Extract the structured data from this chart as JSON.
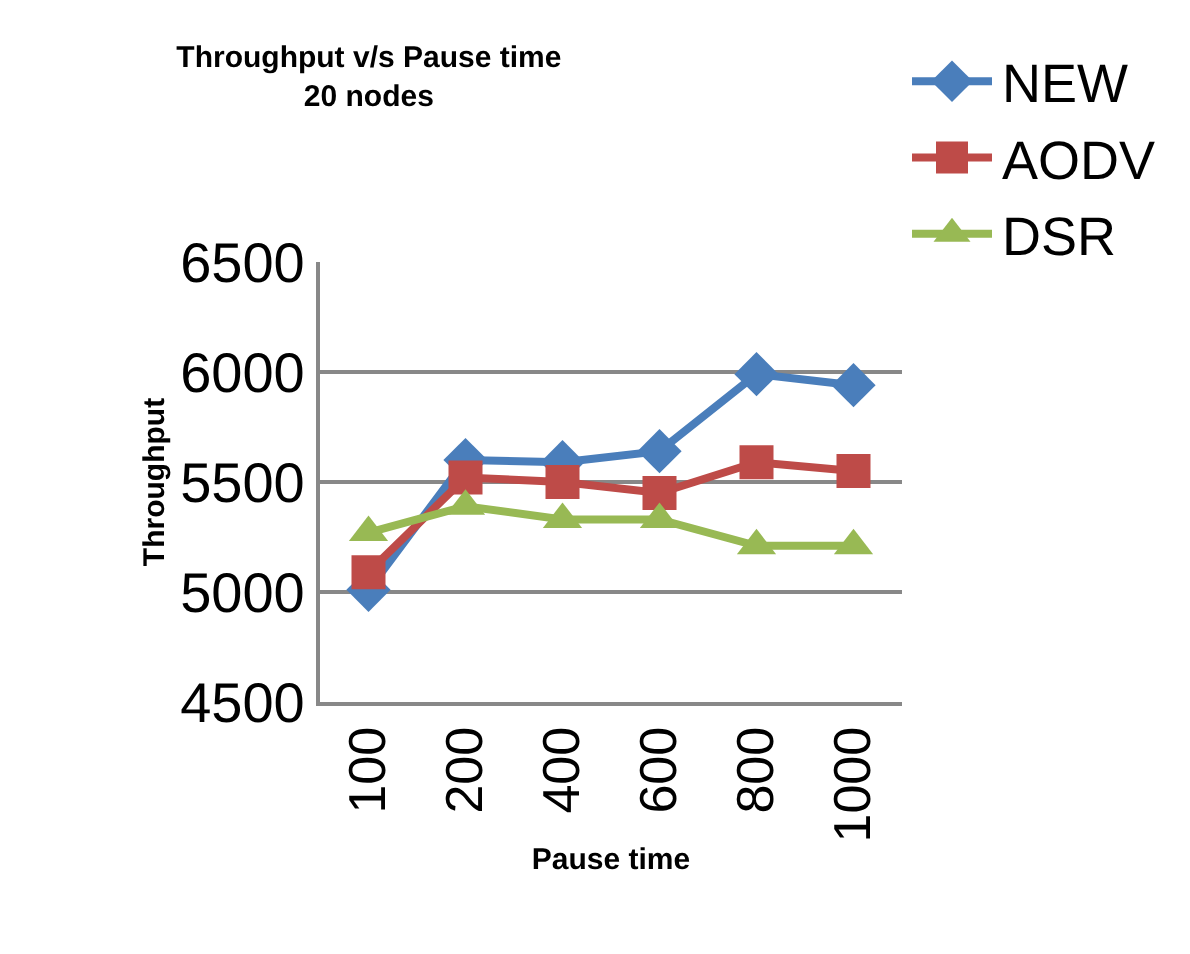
{
  "chart_data": {
    "type": "line",
    "title": "Throughput v/s Pause time",
    "subtitle": "20 nodes",
    "xlabel": "Pause time",
    "ylabel": "Throughput",
    "categories": [
      "100",
      "200",
      "400",
      "600",
      "800",
      "1000"
    ],
    "series": [
      {
        "name": "NEW",
        "color": "#4a7ebb",
        "marker": "diamond",
        "values": [
          5010,
          5600,
          5590,
          5640,
          5990,
          5940
        ]
      },
      {
        "name": "AODV",
        "color": "#be4b48",
        "marker": "square",
        "values": [
          5090,
          5520,
          5500,
          5450,
          5590,
          5550
        ]
      },
      {
        "name": "DSR",
        "color": "#98b954",
        "marker": "triangle",
        "values": [
          5270,
          5390,
          5330,
          5330,
          5210,
          5210
        ]
      }
    ],
    "ylim": [
      4500,
      6500
    ],
    "yticks": [
      4500,
      5000,
      5500,
      6000,
      6500
    ],
    "grid": "y",
    "legend": "top right",
    "line_style": "solid"
  }
}
